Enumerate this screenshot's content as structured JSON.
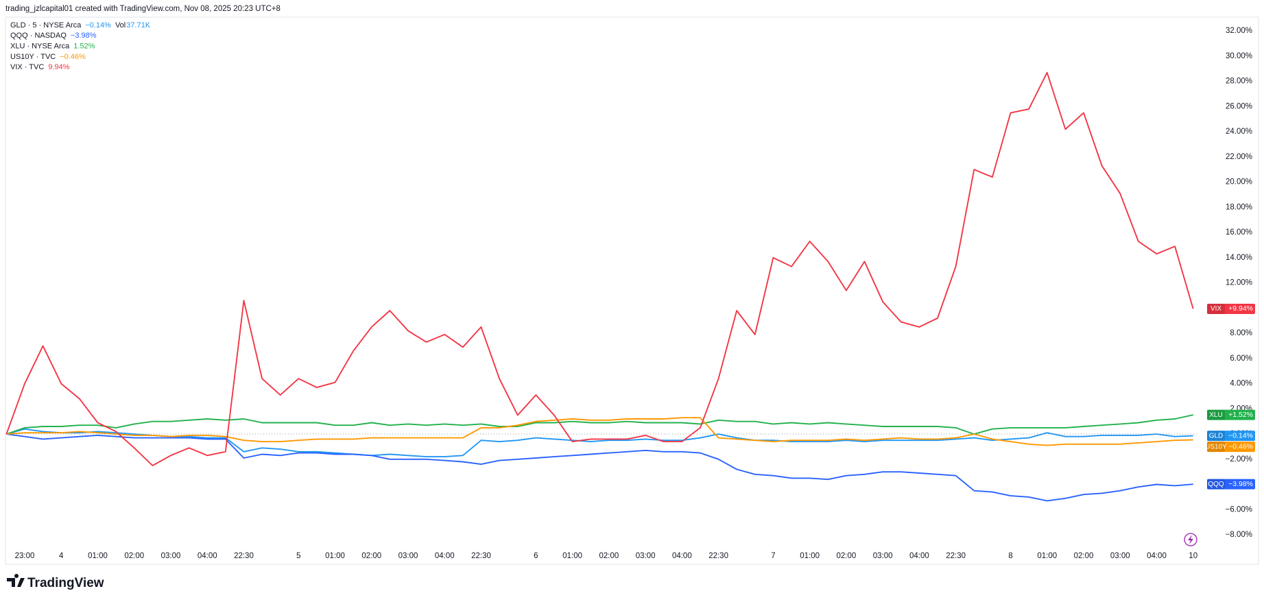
{
  "header": {
    "credit": "trading_jzlcapital01 created with TradingView.com, Nov 08, 2025 20:23 UTC+8"
  },
  "footer": {
    "logo": "TradingView"
  },
  "chart_data": {
    "type": "line",
    "categories": [
      null,
      "23:00",
      null,
      "4",
      null,
      "01:00",
      null,
      "02:00",
      null,
      "03:00",
      null,
      "04:00",
      null,
      "22:30",
      null,
      null,
      "5",
      null,
      "01:00",
      null,
      "02:00",
      null,
      "03:00",
      null,
      "04:00",
      null,
      "22:30",
      null,
      null,
      "6",
      null,
      "01:00",
      null,
      "02:00",
      null,
      "03:00",
      null,
      "04:00",
      null,
      "22:30",
      null,
      null,
      "7",
      null,
      "01:00",
      null,
      "02:00",
      null,
      "03:00",
      null,
      "04:00",
      null,
      "22:30",
      null,
      null,
      "8",
      null,
      "01:00",
      null,
      "02:00",
      null,
      "03:00",
      null,
      "04:00",
      null,
      "10"
    ],
    "ylim": [
      -9,
      33
    ],
    "yticks": [
      {
        "value": -8,
        "label": "−8.00%"
      },
      {
        "value": -6,
        "label": "−6.00%"
      },
      {
        "value": -4,
        "label": "−4.00%"
      },
      {
        "value": -2,
        "label": "−2.00%"
      },
      {
        "value": 0,
        "label": "0.00%"
      },
      {
        "value": 2,
        "label": "2.00%"
      },
      {
        "value": 4,
        "label": "4.00%"
      },
      {
        "value": 6,
        "label": "6.00%"
      },
      {
        "value": 8,
        "label": "8.00%"
      },
      {
        "value": 10,
        "label": "10.00%"
      },
      {
        "value": 12,
        "label": "12.00%"
      },
      {
        "value": 14,
        "label": "14.00%"
      },
      {
        "value": 16,
        "label": "16.00%"
      },
      {
        "value": 18,
        "label": "18.00%"
      },
      {
        "value": 20,
        "label": "20.00%"
      },
      {
        "value": 22,
        "label": "22.00%"
      },
      {
        "value": 24,
        "label": "24.00%"
      },
      {
        "value": 26,
        "label": "26.00%"
      },
      {
        "value": 28,
        "label": "28.00%"
      },
      {
        "value": 30,
        "label": "30.00%"
      },
      {
        "value": 32,
        "label": "32.00%"
      }
    ],
    "grid": false,
    "series": [
      {
        "name": "GLD",
        "legend_label": "GLD · 5 · NYSE Arca",
        "legend_change": "−0.14%",
        "volume_label": "Vol",
        "volume_value": "37.71K",
        "badge": "−0.14%",
        "color": "#2196f3",
        "values": [
          0,
          0.4,
          0.2,
          0.1,
          0.1,
          0.2,
          0.1,
          0.0,
          -0.1,
          -0.2,
          -0.2,
          -0.3,
          -0.3,
          -1.4,
          -1.1,
          -1.2,
          -1.4,
          -1.4,
          -1.5,
          -1.6,
          -1.7,
          -1.6,
          -1.7,
          -1.8,
          -1.8,
          -1.7,
          -0.5,
          -0.6,
          -0.5,
          -0.3,
          -0.4,
          -0.5,
          -0.6,
          -0.5,
          -0.5,
          -0.4,
          -0.5,
          -0.5,
          -0.3,
          0.0,
          -0.3,
          -0.5,
          -0.5,
          -0.6,
          -0.6,
          -0.6,
          -0.5,
          -0.6,
          -0.5,
          -0.5,
          -0.5,
          -0.5,
          -0.4,
          -0.3,
          -0.5,
          -0.4,
          -0.3,
          0.1,
          -0.2,
          -0.2,
          -0.1,
          -0.1,
          -0.1,
          0.0,
          -0.2,
          -0.14
        ]
      },
      {
        "name": "QQQ",
        "legend_label": "QQQ · NASDAQ",
        "legend_change": "−3.98%",
        "badge": "−3.98%",
        "color": "#2962ff",
        "values": [
          0,
          -0.2,
          -0.4,
          -0.3,
          -0.2,
          -0.1,
          -0.2,
          -0.3,
          -0.3,
          -0.3,
          -0.3,
          -0.4,
          -0.4,
          -1.9,
          -1.6,
          -1.7,
          -1.5,
          -1.5,
          -1.6,
          -1.6,
          -1.7,
          -2.0,
          -2.0,
          -2.0,
          -2.1,
          -2.2,
          -2.4,
          -2.1,
          -2.0,
          -1.9,
          -1.8,
          -1.7,
          -1.6,
          -1.5,
          -1.4,
          -1.3,
          -1.4,
          -1.4,
          -1.5,
          -2.0,
          -2.8,
          -3.2,
          -3.3,
          -3.5,
          -3.5,
          -3.6,
          -3.3,
          -3.2,
          -3.0,
          -3.0,
          -3.1,
          -3.2,
          -3.3,
          -4.5,
          -4.6,
          -4.9,
          -5.0,
          -5.3,
          -5.1,
          -4.8,
          -4.7,
          -4.5,
          -4.2,
          -4.0,
          -4.1,
          -3.98
        ]
      },
      {
        "name": "XLU",
        "legend_label": "XLU · NYSE Arca",
        "legend_change": "1.52%",
        "badge": "+1.52%",
        "color": "#22b14c",
        "values": [
          0,
          0.5,
          0.6,
          0.6,
          0.7,
          0.7,
          0.5,
          0.8,
          1.0,
          1.0,
          1.1,
          1.2,
          1.1,
          1.2,
          0.9,
          0.9,
          0.9,
          0.9,
          0.7,
          0.7,
          0.9,
          0.7,
          0.8,
          0.7,
          0.8,
          0.7,
          0.8,
          0.6,
          0.6,
          0.9,
          0.9,
          1.0,
          0.9,
          0.9,
          1.0,
          0.9,
          0.9,
          0.9,
          0.8,
          1.1,
          1.0,
          1.0,
          0.8,
          0.9,
          0.8,
          0.9,
          0.8,
          0.7,
          0.6,
          0.6,
          0.6,
          0.6,
          0.5,
          0.0,
          0.4,
          0.5,
          0.5,
          0.5,
          0.5,
          0.6,
          0.7,
          0.8,
          0.9,
          1.1,
          1.2,
          1.52
        ]
      },
      {
        "name": "US10Y",
        "legend_label": "US10Y · TVC",
        "legend_change": "−0.46%",
        "badge": "−0.46%",
        "color": "#ff9800",
        "values": [
          0,
          0.1,
          0.1,
          0.1,
          0.2,
          0.1,
          0.0,
          -0.1,
          -0.1,
          -0.2,
          -0.1,
          -0.1,
          -0.2,
          -0.5,
          -0.6,
          -0.6,
          -0.5,
          -0.4,
          -0.4,
          -0.4,
          -0.3,
          -0.3,
          -0.3,
          -0.3,
          -0.3,
          -0.3,
          0.5,
          0.5,
          0.7,
          1.0,
          1.1,
          1.2,
          1.1,
          1.1,
          1.2,
          1.2,
          1.2,
          1.3,
          1.3,
          -0.3,
          -0.4,
          -0.5,
          -0.6,
          -0.5,
          -0.5,
          -0.5,
          -0.4,
          -0.5,
          -0.4,
          -0.3,
          -0.4,
          -0.4,
          -0.3,
          0.0,
          -0.4,
          -0.6,
          -0.8,
          -0.9,
          -0.8,
          -0.8,
          -0.8,
          -0.8,
          -0.7,
          -0.6,
          -0.5,
          -0.46
        ]
      },
      {
        "name": "VIX",
        "legend_label": "VIX · TVC",
        "legend_change": "9.94%",
        "badge": "+9.94%",
        "color": "#f23645",
        "values": [
          0,
          4.0,
          7.0,
          4.0,
          2.8,
          0.9,
          0.2,
          -1.1,
          -2.5,
          -1.7,
          -1.1,
          -1.7,
          -1.4,
          10.6,
          4.4,
          3.1,
          4.4,
          3.7,
          4.1,
          6.6,
          8.5,
          9.8,
          8.2,
          7.3,
          7.9,
          6.9,
          8.5,
          4.4,
          1.5,
          3.1,
          1.5,
          -0.6,
          -0.4,
          -0.4,
          -0.4,
          -0.1,
          -0.6,
          -0.6,
          0.5,
          4.4,
          9.8,
          7.9,
          14.0,
          13.3,
          15.3,
          13.7,
          11.4,
          13.7,
          10.5,
          8.9,
          8.5,
          9.2,
          13.3,
          21.0,
          20.4,
          25.5,
          25.8,
          28.7,
          24.2,
          25.5,
          21.3,
          19.1,
          15.3,
          14.3,
          14.9,
          9.94
        ]
      }
    ]
  }
}
